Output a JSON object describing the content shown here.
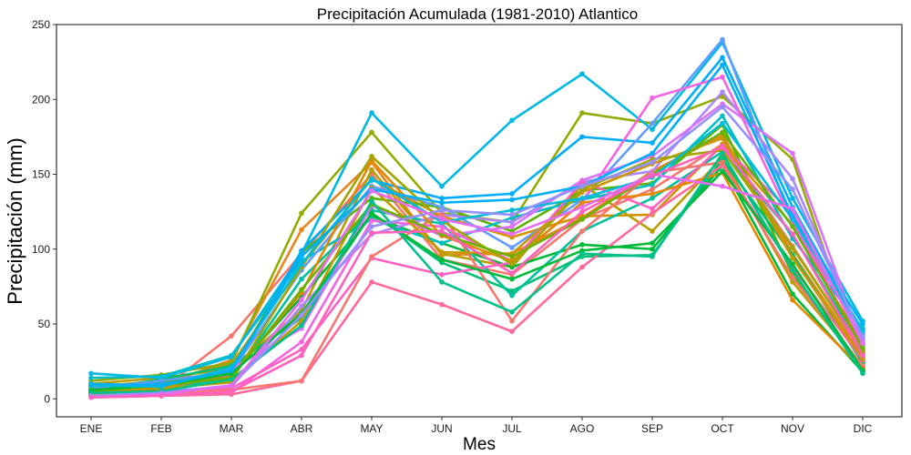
{
  "chart_data": {
    "type": "line",
    "title": "Precipitación Acumulada (1981-2010)  Atlantico",
    "xlabel": "Mes",
    "ylabel": "Precipitación  (mm)",
    "categories": [
      "ENE",
      "FEB",
      "MAR",
      "ABR",
      "MAY",
      "JUN",
      "JUL",
      "AGO",
      "SEP",
      "OCT",
      "NOV",
      "DIC"
    ],
    "ylim": [
      -12,
      250
    ],
    "yticks": [
      0,
      50,
      100,
      150,
      200,
      250
    ],
    "grid": false,
    "legend": "none",
    "series": [
      {
        "color": "#F8766D",
        "values": [
          3,
          6,
          42,
          97,
          150,
          93,
          83,
          120,
          140,
          170,
          102,
          30
        ]
      },
      {
        "color": "#E7861B",
        "values": [
          5,
          9,
          26,
          113,
          158,
          96,
          97,
          121,
          152,
          176,
          97,
          28
        ]
      },
      {
        "color": "#D39200",
        "values": [
          8,
          12,
          23,
          89,
          147,
          122,
          108,
          122,
          123,
          170,
          116,
          36
        ]
      },
      {
        "color": "#B79F00",
        "values": [
          10,
          14,
          20,
          59,
          153,
          97,
          88,
          143,
          112,
          161,
          78,
          22
        ]
      },
      {
        "color": "#93AA00",
        "values": [
          12,
          16,
          24,
          124,
          178,
          124,
          118,
          191,
          184,
          202,
          160,
          25
        ]
      },
      {
        "color": "#5EB300",
        "values": [
          8,
          11,
          19,
          98,
          134,
          128,
          112,
          139,
          144,
          183,
          83,
          21
        ]
      },
      {
        "color": "#00BA38",
        "values": [
          4,
          10,
          17,
          68,
          122,
          104,
          88,
          103,
          100,
          156,
          70,
          18
        ]
      },
      {
        "color": "#00BF74",
        "values": [
          6,
          13,
          22,
          54,
          124,
          91,
          72,
          95,
          96,
          160,
          96,
          24
        ]
      },
      {
        "color": "#00C19F",
        "values": [
          5,
          8,
          13,
          80,
          126,
          117,
          69,
          112,
          134,
          165,
          110,
          32
        ]
      },
      {
        "color": "#00BFC4",
        "values": [
          14,
          15,
          29,
          92,
          120,
          104,
          121,
          133,
          143,
          189,
          107,
          47
        ]
      },
      {
        "color": "#00B9E3",
        "values": [
          17,
          14,
          28,
          97,
          191,
          142,
          186,
          217,
          180,
          238,
          134,
          52
        ]
      },
      {
        "color": "#00ADFA",
        "values": [
          9,
          10,
          16,
          99,
          146,
          134,
          137,
          175,
          171,
          228,
          128,
          44
        ]
      },
      {
        "color": "#619CFF",
        "values": [
          7,
          12,
          18,
          86,
          142,
          128,
          101,
          133,
          184,
          240,
          118,
          43
        ]
      },
      {
        "color": "#AE87FF",
        "values": [
          2,
          5,
          8,
          62,
          110,
          123,
          118,
          145,
          152,
          205,
          147,
          39
        ]
      },
      {
        "color": "#DB72FB",
        "values": [
          3,
          7,
          20,
          47,
          129,
          109,
          115,
          146,
          162,
          197,
          164,
          36
        ]
      },
      {
        "color": "#F564E3",
        "values": [
          1,
          2,
          4,
          38,
          119,
          115,
          92,
          131,
          201,
          215,
          118,
          33
        ]
      },
      {
        "color": "#FF61C3",
        "values": [
          2,
          4,
          7,
          33,
          94,
          83,
          91,
          145,
          127,
          169,
          124,
          30
        ]
      },
      {
        "color": "#FF699C",
        "values": [
          1,
          2,
          3,
          12,
          78,
          63,
          45,
          88,
          124,
          156,
          88,
          26
        ]
      },
      {
        "color": "#F8766D",
        "values": [
          2,
          3,
          6,
          12,
          95,
          124,
          52,
          112,
          151,
          158,
          81,
          22
        ]
      },
      {
        "color": "#E58700",
        "values": [
          6,
          8,
          15,
          71,
          159,
          109,
          92,
          131,
          137,
          151,
          66,
          20
        ]
      },
      {
        "color": "#C99800",
        "values": [
          4,
          7,
          11,
          52,
          141,
          98,
          97,
          138,
          157,
          174,
          94,
          27
        ]
      },
      {
        "color": "#A3A500",
        "values": [
          3,
          6,
          12,
          88,
          162,
          119,
          90,
          140,
          160,
          166,
          101,
          31
        ]
      },
      {
        "color": "#6BB100",
        "values": [
          5,
          9,
          14,
          73,
          130,
          110,
          95,
          120,
          150,
          178,
          115,
          34
        ]
      },
      {
        "color": "#00BA38",
        "values": [
          6,
          9,
          17,
          57,
          124,
          93,
          80,
          99,
          104,
          152,
          90,
          19
        ]
      },
      {
        "color": "#00C08B",
        "values": [
          4,
          5,
          13,
          49,
          132,
          78,
          58,
          97,
          95,
          164,
          86,
          17
        ]
      },
      {
        "color": "#00BCD8",
        "values": [
          9,
          8,
          21,
          90,
          147,
          118,
          126,
          134,
          148,
          184,
          120,
          46
        ]
      },
      {
        "color": "#00B0F6",
        "values": [
          10,
          9,
          19,
          95,
          140,
          131,
          133,
          142,
          164,
          223,
          122,
          50
        ]
      },
      {
        "color": "#9590FF",
        "values": [
          2,
          4,
          9,
          56,
          115,
          126,
          123,
          142,
          158,
          195,
          140,
          41
        ]
      },
      {
        "color": "#E76BF3",
        "values": [
          1,
          3,
          9,
          66,
          139,
          120,
          110,
          128,
          150,
          142,
          127,
          37
        ]
      },
      {
        "color": "#FF62BC",
        "values": [
          1,
          2,
          5,
          29,
          111,
          112,
          84,
          125,
          149,
          168,
          110,
          29
        ]
      }
    ]
  }
}
